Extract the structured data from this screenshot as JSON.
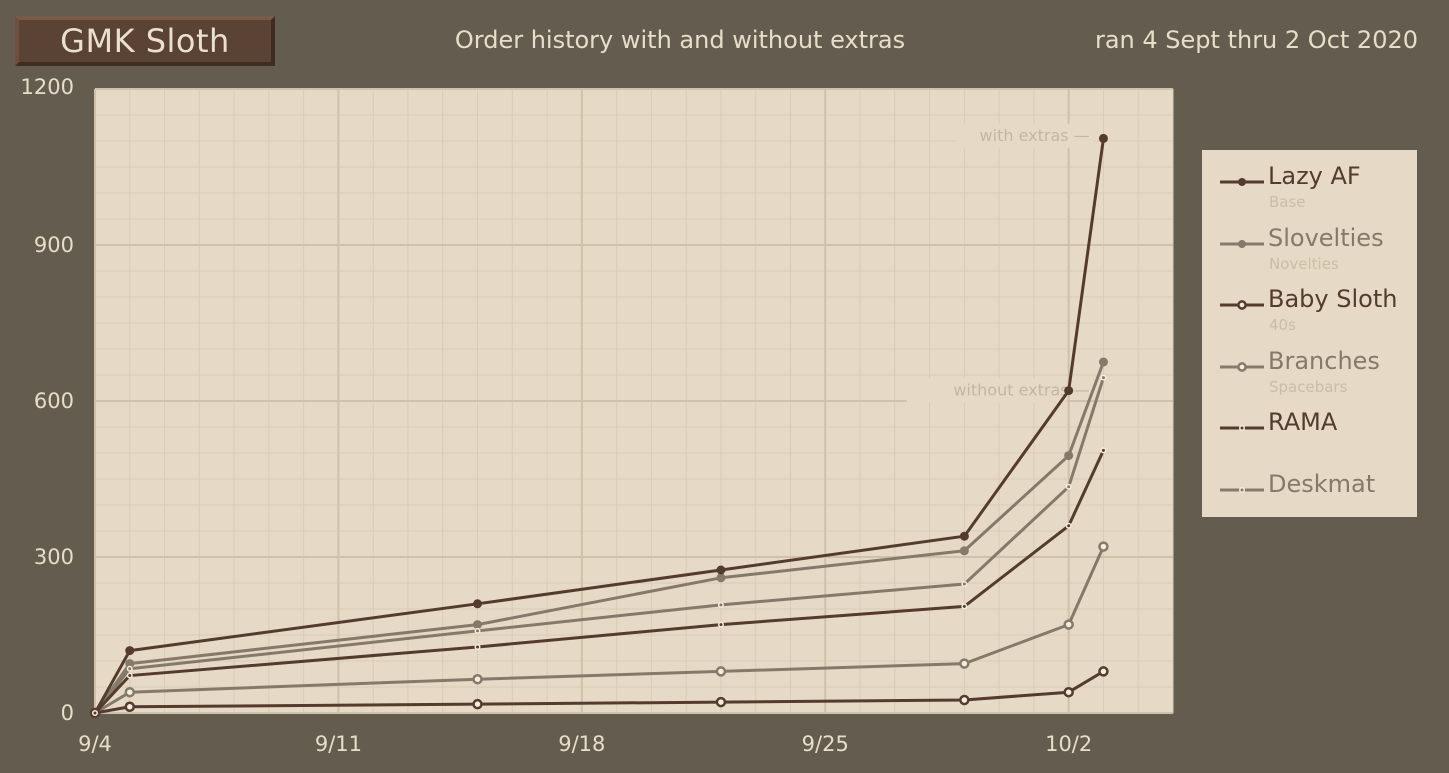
{
  "header": {
    "title": "GMK Sloth",
    "subtitle": "Order history with and without extras",
    "date_range": "ran 4 Sept thru 2 Oct 2020"
  },
  "colors": {
    "background": "#645d4f",
    "plot_bg": "#e6dac6",
    "dark": "#553a2e",
    "light": "#857a6a"
  },
  "chart_data": {
    "type": "line",
    "x_unit": "date (Sept-Oct 2020)",
    "xlim": [
      "2020-09-04",
      "2020-10-05"
    ],
    "ylim": [
      0,
      1200
    ],
    "x_ticks": [
      {
        "date": "2020-09-04",
        "label": "9/4"
      },
      {
        "date": "2020-09-11",
        "label": "9/11"
      },
      {
        "date": "2020-09-18",
        "label": "9/18"
      },
      {
        "date": "2020-09-25",
        "label": "9/25"
      },
      {
        "date": "2020-10-02",
        "label": "10/2"
      }
    ],
    "y_ticks": [
      0,
      300,
      600,
      900,
      1200
    ],
    "grid": true,
    "legend_position": "right",
    "annotations": [
      {
        "text": "with extras —",
        "date": "2020-10-02",
        "y": 1110
      },
      {
        "text": "without extras —",
        "date": "2020-10-02",
        "y": 620
      }
    ],
    "series": [
      {
        "name": "Lazy AF",
        "sublabel": "Base",
        "color": "#553a2e",
        "marker": "dot",
        "x": [
          "2020-09-04",
          "2020-09-05",
          "2020-09-15",
          "2020-09-22",
          "2020-09-29",
          "2020-10-02",
          "2020-10-03"
        ],
        "y": [
          0,
          120,
          210,
          275,
          340,
          620,
          1105
        ]
      },
      {
        "name": "Slovelties",
        "sublabel": "Novelties",
        "color": "#857a6a",
        "marker": "dot",
        "x": [
          "2020-09-04",
          "2020-09-05",
          "2020-09-15",
          "2020-09-22",
          "2020-09-29",
          "2020-10-02",
          "2020-10-03"
        ],
        "y": [
          0,
          95,
          170,
          260,
          312,
          495,
          675
        ]
      },
      {
        "name": "Baby Sloth",
        "sublabel": "40s",
        "color": "#553a2e",
        "marker": "ring",
        "x": [
          "2020-09-04",
          "2020-09-05",
          "2020-09-15",
          "2020-09-22",
          "2020-09-29",
          "2020-10-02",
          "2020-10-03"
        ],
        "y": [
          0,
          12,
          17,
          21,
          25,
          40,
          80
        ]
      },
      {
        "name": "Branches",
        "sublabel": "Spacebars",
        "color": "#857a6a",
        "marker": "ring",
        "x": [
          "2020-09-04",
          "2020-09-05",
          "2020-09-15",
          "2020-09-22",
          "2020-09-29",
          "2020-10-02",
          "2020-10-03"
        ],
        "y": [
          0,
          40,
          65,
          80,
          95,
          170,
          320
        ]
      },
      {
        "name": "RAMA",
        "sublabel": "",
        "color": "#553a2e",
        "marker": "tiny",
        "x": [
          "2020-09-04",
          "2020-09-05",
          "2020-09-15",
          "2020-09-22",
          "2020-09-29",
          "2020-10-02",
          "2020-10-03"
        ],
        "y": [
          0,
          72,
          127,
          170,
          205,
          360,
          505
        ]
      },
      {
        "name": "Deskmat",
        "sublabel": "",
        "color": "#857a6a",
        "marker": "tiny",
        "x": [
          "2020-09-04",
          "2020-09-05",
          "2020-09-15",
          "2020-09-22",
          "2020-09-29",
          "2020-10-02",
          "2020-10-03"
        ],
        "y": [
          0,
          85,
          158,
          208,
          248,
          435,
          645
        ]
      }
    ]
  }
}
